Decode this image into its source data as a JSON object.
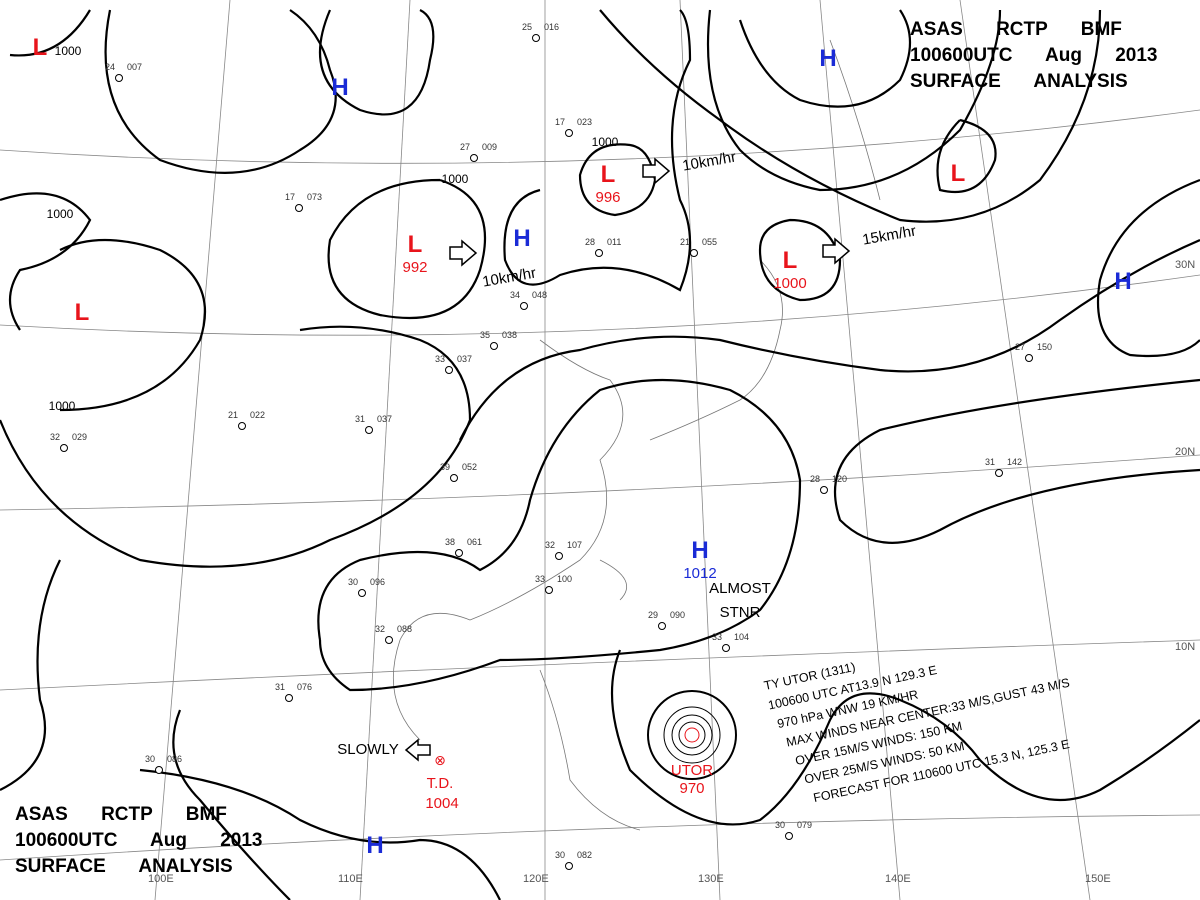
{
  "header": {
    "lines": [
      "ASAS RCTP BMF",
      "100600UTC Aug 2013",
      "SURFACE ANALYSIS"
    ]
  },
  "footer": {
    "lines": [
      "ASAS RCTP BMF",
      "100600UTC Aug 2013",
      "SURFACE ANALYSIS"
    ]
  },
  "systems": [
    {
      "symbol": "L"
    },
    {
      "symbol": "H"
    },
    {
      "symbol": "L",
      "pressure": "992"
    },
    {
      "symbol": "L",
      "pressure": "996"
    },
    {
      "symbol": "H"
    },
    {
      "symbol": "L",
      "pressure": "1000"
    },
    {
      "symbol": "H"
    },
    {
      "symbol": "L"
    },
    {
      "symbol": "H"
    },
    {
      "symbol": "L"
    },
    {
      "symbol": "H",
      "pressure": "1012"
    },
    {
      "symbol": "H"
    }
  ],
  "tropical_depression": {
    "label": "T.D.",
    "pressure": "1004"
  },
  "motions": [
    "10km/hr",
    "10km/hr",
    "15km/hr",
    "SLOWLY"
  ],
  "stationary_note": [
    "ALMOST",
    "STNR"
  ],
  "isobar_labels": [
    "1000",
    "1000",
    "1000",
    "1000",
    "1000"
  ],
  "latitudes": [
    "30N",
    "20N",
    "10N"
  ],
  "longitudes": [
    "100E",
    "110E",
    "120E",
    "130E",
    "140E",
    "150E"
  ],
  "typhoon": {
    "name": "UTOR",
    "pressure": "970",
    "bulletin": [
      "TY UTOR (1311)",
      "100600 UTC AT13.9 N 129.3 E",
      "970 hPa WNW 19 KM/HR",
      "MAX WINDS NEAR CENTER:33 M/S,GUST 43 M/S",
      "OVER 15M/S WINDS: 150 KM",
      "OVER 25M/S WINDS: 50 KM",
      "FORECAST FOR 110600 UTC 15.3 N, 125.3 E"
    ]
  },
  "stations": [
    {
      "t": "24",
      "p": "007"
    },
    {
      "t": "27",
      "p": "009"
    },
    {
      "t": "25",
      "p": "016"
    },
    {
      "t": "17",
      "p": "023"
    },
    {
      "t": "21",
      "p": "055"
    },
    {
      "t": "17",
      "p": "073"
    },
    {
      "t": "28",
      "p": "011"
    },
    {
      "t": "34",
      "p": "048"
    },
    {
      "t": "35",
      "p": "038"
    },
    {
      "t": "33",
      "p": "037"
    },
    {
      "t": "21",
      "p": "022"
    },
    {
      "t": "31",
      "p": "037"
    },
    {
      "t": "39",
      "p": "052"
    },
    {
      "t": "38",
      "p": "061"
    },
    {
      "t": "30",
      "p": "096"
    },
    {
      "t": "32",
      "p": "088"
    },
    {
      "t": "32",
      "p": "107"
    },
    {
      "t": "33",
      "p": "100"
    },
    {
      "t": "29",
      "p": "090"
    },
    {
      "t": "33",
      "p": "104"
    },
    {
      "t": "27",
      "p": "150"
    },
    {
      "t": "31",
      "p": "142"
    },
    {
      "t": "28",
      "p": "120"
    },
    {
      "t": "32",
      "p": "029"
    },
    {
      "t": "30",
      "p": "079"
    },
    {
      "t": "30",
      "p": "082"
    },
    {
      "t": "31",
      "p": "076"
    },
    {
      "t": "30",
      "p": "086"
    }
  ]
}
